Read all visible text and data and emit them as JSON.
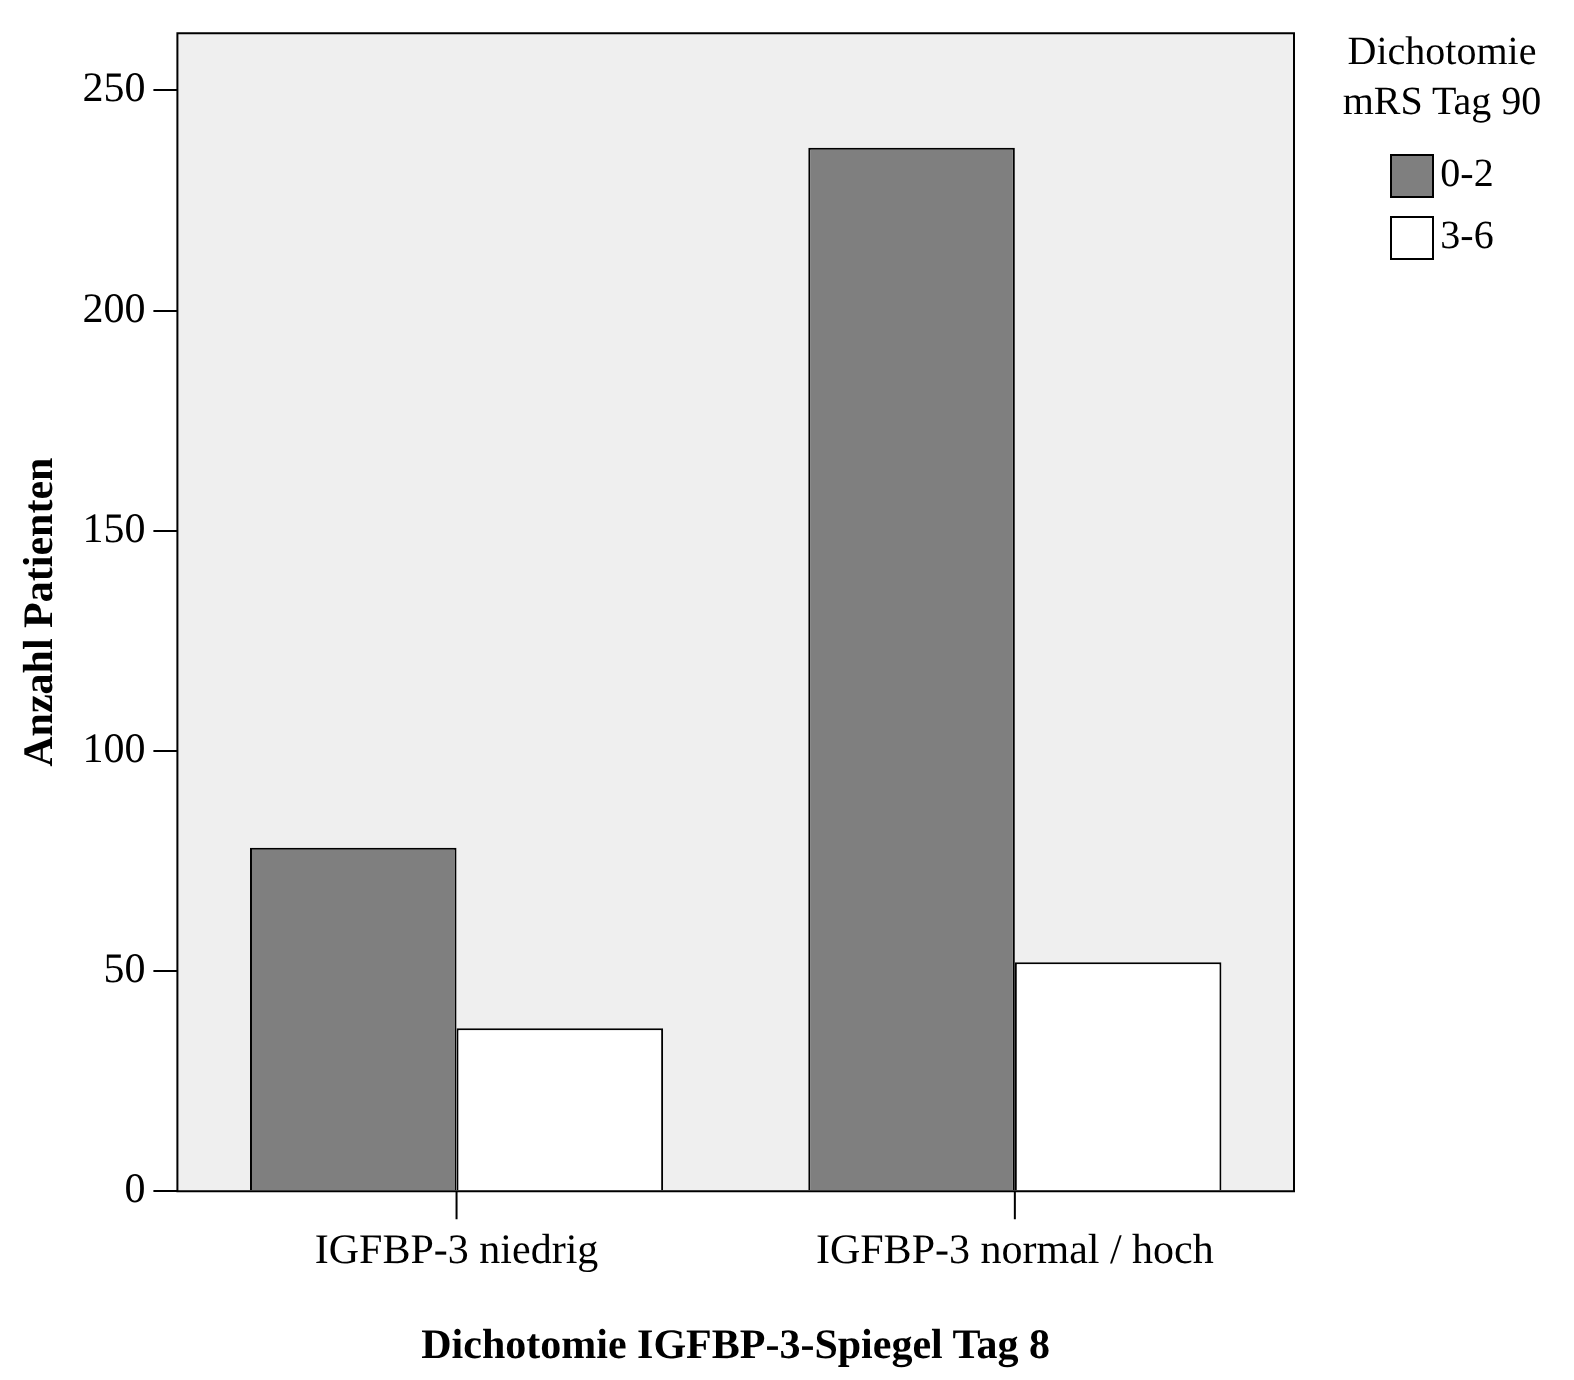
{
  "chart_data": {
    "type": "bar",
    "xlabel": "Dichotomie IGFBP-3-Spiegel Tag 8",
    "ylabel": "Anzahl Patienten",
    "legend_title": "Dichotomie mRS Tag 90",
    "categories": [
      "IGFBP-3 niedrig",
      "IGFBP-3 normal / hoch"
    ],
    "series": [
      {
        "name": "0-2",
        "color": "#7f7f7f",
        "values": [
          78,
          237
        ]
      },
      {
        "name": "3-6",
        "color": "#ffffff",
        "values": [
          37,
          52
        ]
      }
    ],
    "ylim": [
      0,
      263
    ],
    "yticks": [
      0,
      50,
      100,
      150,
      200,
      250
    ],
    "grid": false,
    "legend": "top right"
  }
}
